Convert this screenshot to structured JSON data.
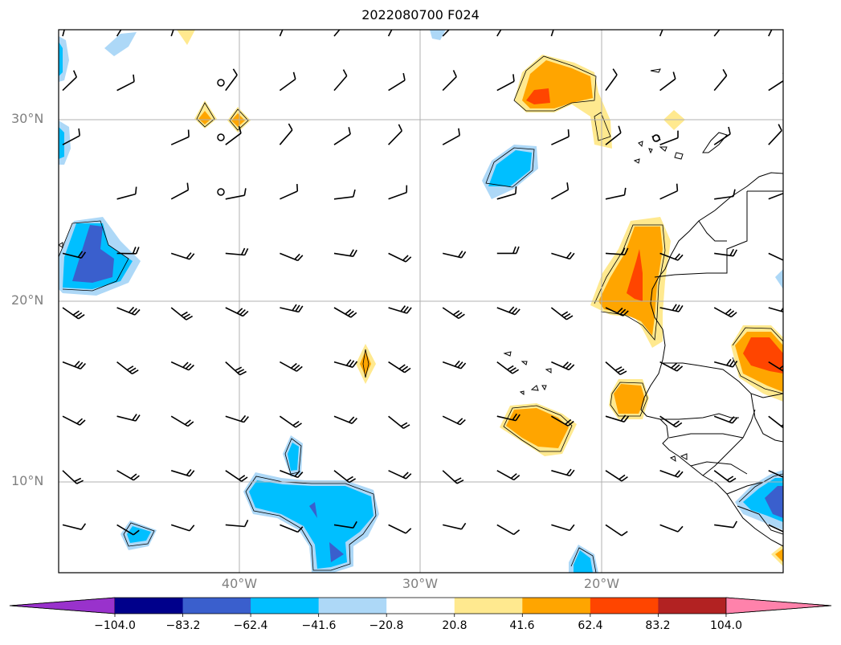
{
  "map": {
    "title": "2022080700 F024",
    "lat_labels": [
      "30°N",
      "20°N",
      "10°N"
    ],
    "lon_labels": [
      "40°W",
      "30°W",
      "20°W"
    ]
  },
  "colorbar": {
    "ticks": [
      "−104.0",
      "−83.2",
      "−62.4",
      "−41.6",
      "−20.8",
      "20.8",
      "41.6",
      "62.4",
      "83.2",
      "104.0"
    ],
    "colors": [
      "#9932CC",
      "#00008B",
      "#3A5FCD",
      "#00BFFF",
      "#ADD8F7",
      "#FFFFFF",
      "#FFE98F",
      "#FFA500",
      "#FF4500",
      "#B22222",
      "#FF82AB"
    ]
  }
}
